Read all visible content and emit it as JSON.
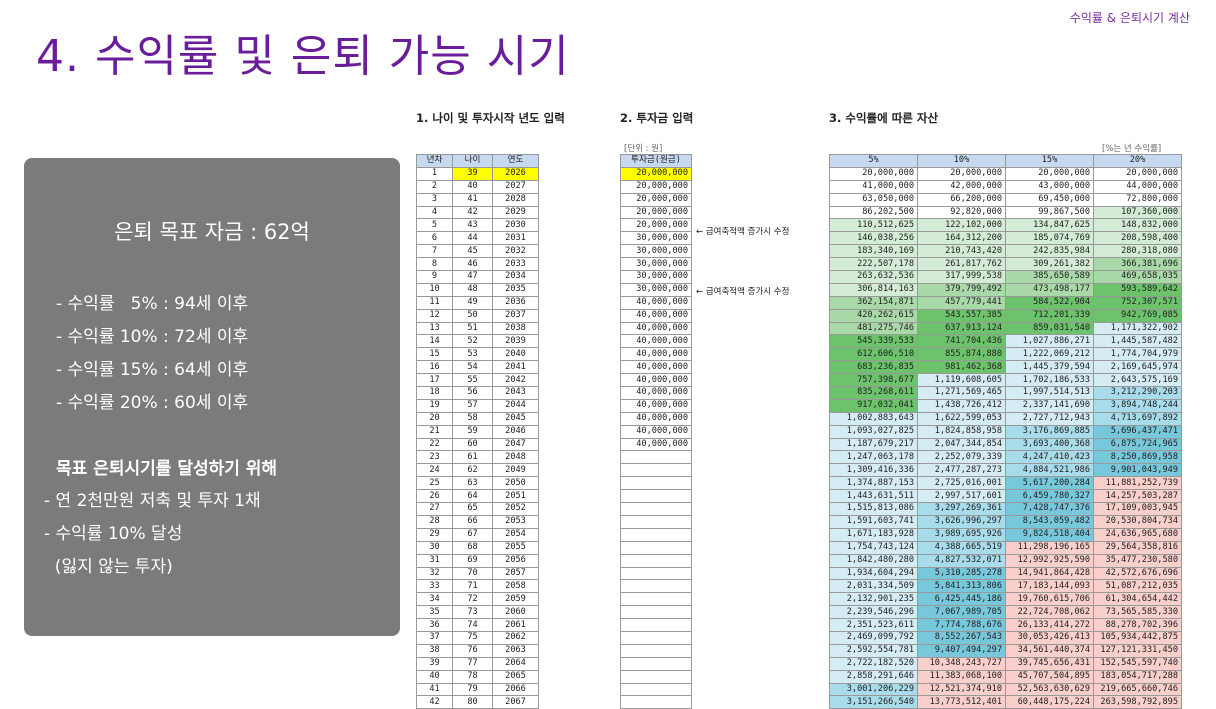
{
  "header_tag": "수익률 & 은퇴시기 계산",
  "title": "4. 수익률 및 은퇴 가능 시기",
  "goal": {
    "title": "은퇴 목표 자금 : 62억",
    "rates": [
      "- 수익률   5% : 94세 이후",
      "- 수익률 10% : 72세 이후",
      "- 수익률 15% : 64세 이후",
      "- 수익률 20% : 60세 이후"
    ],
    "plan_heading": "목표 은퇴시기를 달성하기 위해",
    "plan_items": [
      "- 연 2천만원 저축 및 투자 1채",
      "- 수익률 10% 달성",
      "  (잃지 않는 투자)"
    ]
  },
  "sections": {
    "s1": "1. 나이 및 투자시작 년도 입력",
    "s2": "2. 투자금 입력",
    "s3": "3. 수익률에 따른 자산",
    "unit_note": "[단위 : 원]",
    "rate_note": "[%는 년 수익률]"
  },
  "age_table": {
    "headers": [
      "년차",
      "나이",
      "연도"
    ],
    "rows": [
      [
        "1",
        "39",
        "2026"
      ],
      [
        "2",
        "40",
        "2027"
      ],
      [
        "3",
        "41",
        "2028"
      ],
      [
        "4",
        "42",
        "2029"
      ],
      [
        "5",
        "43",
        "2030"
      ],
      [
        "6",
        "44",
        "2031"
      ],
      [
        "7",
        "45",
        "2032"
      ],
      [
        "8",
        "46",
        "2033"
      ],
      [
        "9",
        "47",
        "2034"
      ],
      [
        "10",
        "48",
        "2035"
      ],
      [
        "11",
        "49",
        "2036"
      ],
      [
        "12",
        "50",
        "2037"
      ],
      [
        "13",
        "51",
        "2038"
      ],
      [
        "14",
        "52",
        "2039"
      ],
      [
        "15",
        "53",
        "2040"
      ],
      [
        "16",
        "54",
        "2041"
      ],
      [
        "17",
        "55",
        "2042"
      ],
      [
        "18",
        "56",
        "2043"
      ],
      [
        "19",
        "57",
        "2044"
      ],
      [
        "20",
        "58",
        "2045"
      ],
      [
        "21",
        "59",
        "2046"
      ],
      [
        "22",
        "60",
        "2047"
      ],
      [
        "23",
        "61",
        "2048"
      ],
      [
        "24",
        "62",
        "2049"
      ],
      [
        "25",
        "63",
        "2050"
      ],
      [
        "26",
        "64",
        "2051"
      ],
      [
        "27",
        "65",
        "2052"
      ],
      [
        "28",
        "66",
        "2053"
      ],
      [
        "29",
        "67",
        "2054"
      ],
      [
        "30",
        "68",
        "2055"
      ],
      [
        "31",
        "69",
        "2056"
      ],
      [
        "32",
        "70",
        "2057"
      ],
      [
        "33",
        "71",
        "2058"
      ],
      [
        "34",
        "72",
        "2059"
      ],
      [
        "35",
        "73",
        "2060"
      ],
      [
        "36",
        "74",
        "2061"
      ],
      [
        "37",
        "75",
        "2062"
      ],
      [
        "38",
        "76",
        "2063"
      ],
      [
        "39",
        "77",
        "2064"
      ],
      [
        "40",
        "78",
        "2065"
      ],
      [
        "41",
        "79",
        "2066"
      ],
      [
        "42",
        "80",
        "2067"
      ]
    ]
  },
  "invest_table": {
    "header": "투자금(원금)",
    "rows": [
      "20,000,000",
      "20,000,000",
      "20,000,000",
      "20,000,000",
      "20,000,000",
      "30,000,000",
      "30,000,000",
      "30,000,000",
      "30,000,000",
      "30,000,000",
      "40,000,000",
      "40,000,000",
      "40,000,000",
      "40,000,000",
      "40,000,000",
      "40,000,000",
      "40,000,000",
      "40,000,000",
      "40,000,000",
      "40,000,000",
      "40,000,000",
      "40,000,000",
      "",
      "",
      "",
      "",
      "",
      "",
      "",
      "",
      "",
      "",
      "",
      "",
      "",
      "",
      "",
      "",
      "",
      "",
      "",
      ""
    ],
    "notes": [
      "← 급여축적액 증가시 수정",
      "← 급여축적액 증가시 수정"
    ]
  },
  "asset_table": {
    "headers": [
      "5%",
      "10%",
      "15%",
      "20%"
    ],
    "rows": [
      [
        "20,000,000",
        "20,000,000",
        "20,000,000",
        "20,000,000"
      ],
      [
        "41,000,000",
        "42,000,000",
        "43,000,000",
        "44,000,000"
      ],
      [
        "63,050,000",
        "66,200,000",
        "69,450,000",
        "72,800,000"
      ],
      [
        "86,202,500",
        "92,820,000",
        "99,867,500",
        "107,360,000"
      ],
      [
        "110,512,625",
        "122,102,000",
        "134,847,625",
        "148,832,000"
      ],
      [
        "146,038,256",
        "164,312,200",
        "185,074,769",
        "208,598,400"
      ],
      [
        "183,340,169",
        "210,743,420",
        "242,835,984",
        "280,318,080"
      ],
      [
        "222,507,178",
        "261,817,762",
        "309,261,382",
        "366,381,696"
      ],
      [
        "263,632,536",
        "317,999,538",
        "385,650,589",
        "469,658,035"
      ],
      [
        "306,814,163",
        "379,799,492",
        "473,498,177",
        "593,589,642"
      ],
      [
        "362,154,871",
        "457,779,441",
        "584,522,904",
        "752,307,571"
      ],
      [
        "420,262,615",
        "543,557,385",
        "712,201,339",
        "942,769,085"
      ],
      [
        "481,275,746",
        "637,913,124",
        "859,031,540",
        "1,171,322,902"
      ],
      [
        "545,339,533",
        "741,704,436",
        "1,027,886,271",
        "1,445,587,482"
      ],
      [
        "612,606,510",
        "855,874,880",
        "1,222,069,212",
        "1,774,704,979"
      ],
      [
        "683,236,835",
        "981,462,368",
        "1,445,379,594",
        "2,169,645,974"
      ],
      [
        "757,398,677",
        "1,119,608,605",
        "1,702,186,533",
        "2,643,575,169"
      ],
      [
        "835,268,611",
        "1,271,569,465",
        "1,997,514,513",
        "3,212,290,203"
      ],
      [
        "917,032,041",
        "1,438,726,412",
        "2,337,141,690",
        "3,894,748,244"
      ],
      [
        "1,002,883,643",
        "1,622,599,053",
        "2,727,712,943",
        "4,713,697,892"
      ],
      [
        "1,093,027,825",
        "1,824,858,958",
        "3,176,869,885",
        "5,696,437,471"
      ],
      [
        "1,187,679,217",
        "2,047,344,854",
        "3,693,400,368",
        "6,875,724,965"
      ],
      [
        "1,247,063,178",
        "2,252,079,339",
        "4,247,410,423",
        "8,250,869,958"
      ],
      [
        "1,309,416,336",
        "2,477,287,273",
        "4,884,521,986",
        "9,901,043,949"
      ],
      [
        "1,374,887,153",
        "2,725,016,001",
        "5,617,200,284",
        "11,881,252,739"
      ],
      [
        "1,443,631,511",
        "2,997,517,601",
        "6,459,780,327",
        "14,257,503,287"
      ],
      [
        "1,515,813,086",
        "3,297,269,361",
        "7,428,747,376",
        "17,109,003,945"
      ],
      [
        "1,591,603,741",
        "3,626,996,297",
        "8,543,059,482",
        "20,530,804,734"
      ],
      [
        "1,671,183,928",
        "3,989,695,926",
        "9,824,518,404",
        "24,636,965,680"
      ],
      [
        "1,754,743,124",
        "4,388,665,519",
        "11,298,196,165",
        "29,564,358,816"
      ],
      [
        "1,842,480,280",
        "4,827,532,071",
        "12,992,925,590",
        "35,477,230,580"
      ],
      [
        "1,934,604,294",
        "5,310,285,278",
        "14,941,864,428",
        "42,572,676,696"
      ],
      [
        "2,031,334,509",
        "5,841,313,806",
        "17,183,144,093",
        "51,087,212,035"
      ],
      [
        "2,132,901,235",
        "6,425,445,186",
        "19,760,615,706",
        "61,304,654,442"
      ],
      [
        "2,239,546,296",
        "7,067,989,705",
        "22,724,708,062",
        "73,565,585,330"
      ],
      [
        "2,351,523,611",
        "7,774,788,676",
        "26,133,414,272",
        "88,278,702,396"
      ],
      [
        "2,469,099,792",
        "8,552,267,543",
        "30,053,426,413",
        "105,934,442,875"
      ],
      [
        "2,592,554,781",
        "9,407,494,297",
        "34,561,440,374",
        "127,121,331,450"
      ],
      [
        "2,722,182,520",
        "10,348,243,727",
        "39,745,656,431",
        "152,545,597,740"
      ],
      [
        "2,858,291,646",
        "11,383,068,100",
        "45,707,504,895",
        "183,054,717,288"
      ],
      [
        "3,001,206,229",
        "12,521,374,910",
        "52,563,630,629",
        "219,665,660,746"
      ],
      [
        "3,151,266,540",
        "13,773,512,401",
        "60,448,175,224",
        "263,598,792,895"
      ]
    ]
  },
  "colors": {
    "title": "#6a1d9a",
    "panel": "#7b7b7b",
    "header_fill": "#c7d9f1",
    "highlight": "#ffff00",
    "green_light": "#d4ecd5",
    "green_mid": "#a9d9a9",
    "green_dark": "#6cc36c",
    "blue_light": "#d6ecf5",
    "blue_mid": "#a8dcea",
    "blue_dark": "#78c8dc",
    "pink": "#f8cfcb"
  }
}
